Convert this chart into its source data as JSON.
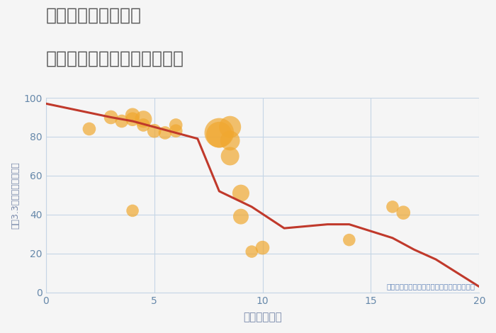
{
  "title_line1": "大阪府河内国分駅の",
  "title_line2": "駅距離別中古マンション価格",
  "xlabel": "駅距離（分）",
  "ylabel": "坪（3.3㎡）単価（万円）",
  "xlim": [
    0,
    20
  ],
  "ylim": [
    0,
    100
  ],
  "background_color": "#f5f5f5",
  "plot_bg_color": "#f5f5f5",
  "line_color": "#c0392b",
  "line_x": [
    0,
    3,
    4,
    5,
    6,
    7,
    8,
    9.5,
    11,
    12,
    13,
    14,
    16,
    17,
    18,
    19,
    20
  ],
  "line_y": [
    97,
    90,
    88,
    85,
    82,
    79,
    52,
    44,
    33,
    34,
    35,
    35,
    28,
    22,
    17,
    10,
    3
  ],
  "scatter_x": [
    2,
    3,
    3.5,
    4,
    4,
    4.5,
    4.5,
    5,
    5.5,
    6,
    6,
    4,
    8,
    8,
    8.5,
    8.5,
    8.5,
    9,
    9,
    9.5,
    10,
    14,
    16,
    16.5
  ],
  "scatter_y": [
    84,
    90,
    88,
    91,
    89,
    89,
    86,
    83,
    82,
    83,
    86,
    42,
    82,
    81,
    85,
    78,
    70,
    51,
    39,
    21,
    23,
    27,
    44,
    41
  ],
  "scatter_size": [
    180,
    200,
    180,
    220,
    200,
    300,
    180,
    200,
    180,
    180,
    180,
    160,
    900,
    700,
    500,
    400,
    350,
    300,
    250,
    160,
    200,
    160,
    160,
    200
  ],
  "scatter_color": "#f0a830",
  "scatter_alpha": 0.7,
  "annotation": "円の大きさは、取引のあった物件面積を示す",
  "annotation_color": "#6688bb",
  "title_color": "#555555",
  "axis_label_color": "#7788aa",
  "tick_label_color": "#6688aa",
  "grid_color": "#c5d5e5",
  "line_width": 2.2,
  "title_fontsize": 18,
  "ylabel_fontsize": 9,
  "xlabel_fontsize": 11
}
